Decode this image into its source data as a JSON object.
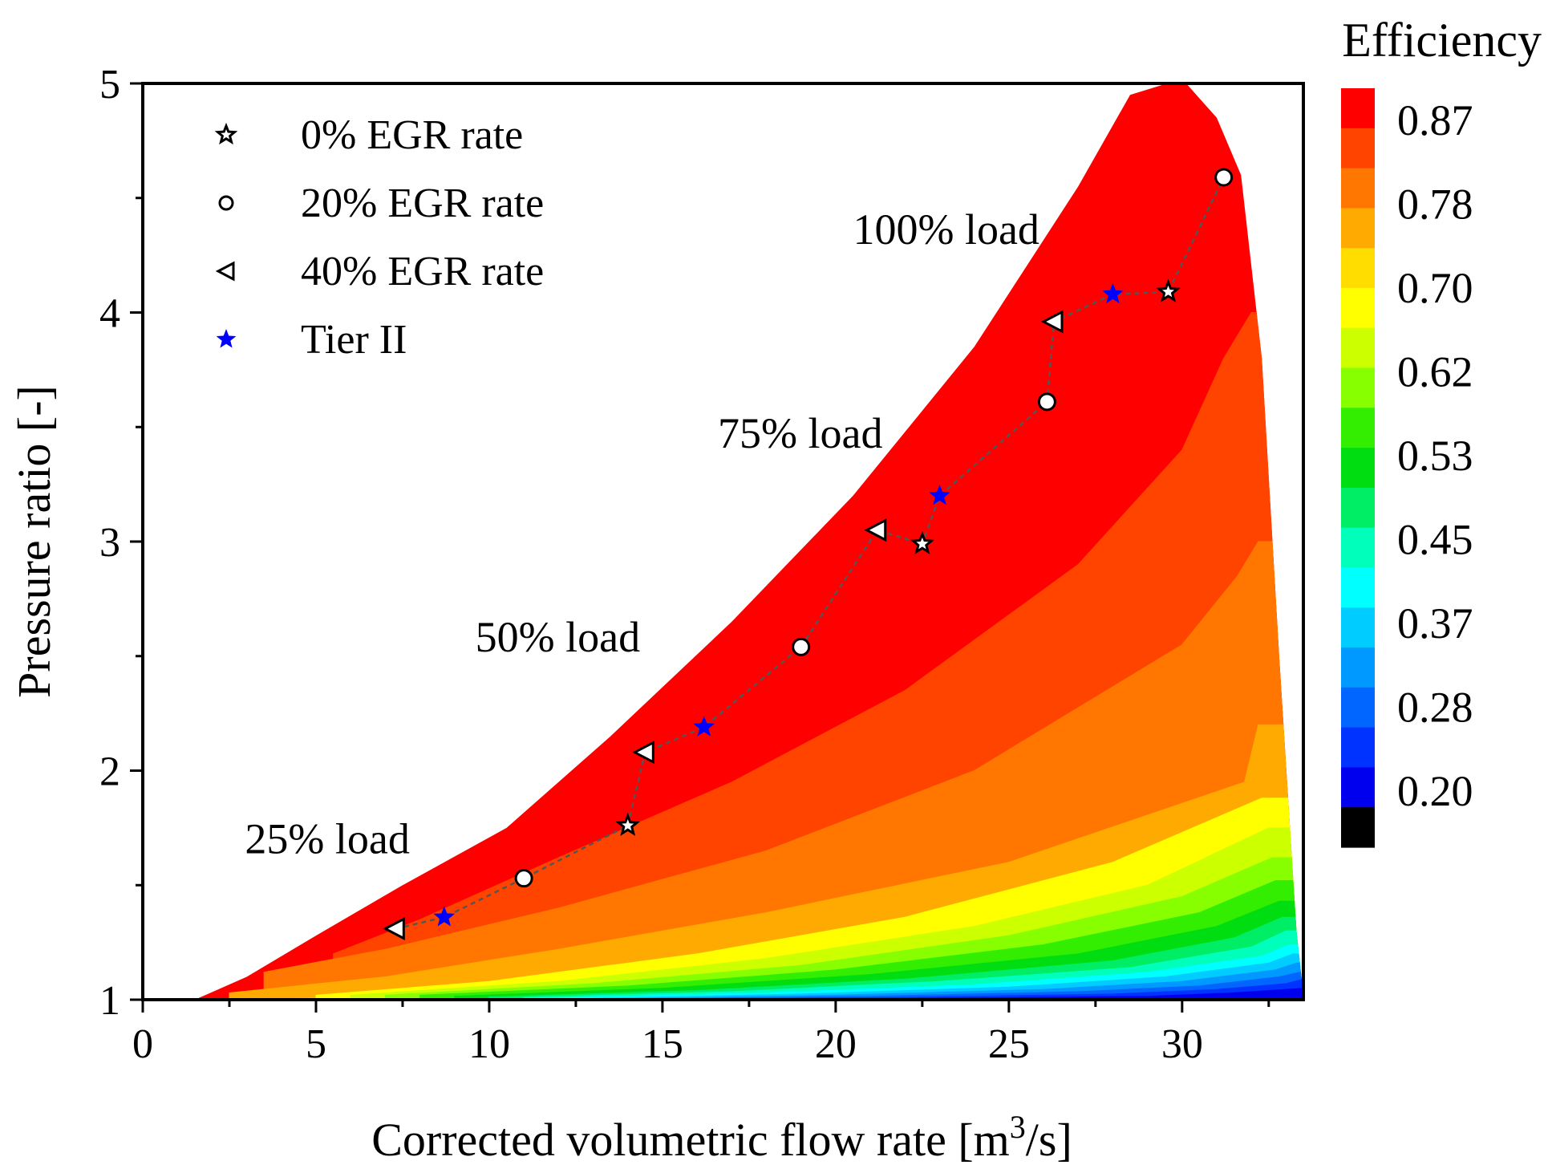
{
  "chart_data": {
    "type": "contour",
    "title": "",
    "xlabel_main": "Corrected volumetric flow rate [m",
    "xlabel_sup": "3",
    "xlabel_tail": "/s]",
    "ylabel": "Pressure ratio [-]",
    "xlim": [
      0,
      33.5
    ],
    "ylim": [
      1,
      5
    ],
    "xticks": [
      "0",
      "5",
      "10",
      "15",
      "20",
      "25",
      "30"
    ],
    "xtick_values": [
      0,
      5,
      10,
      15,
      20,
      25,
      30
    ],
    "yticks": [
      "1",
      "2",
      "3",
      "4",
      "5"
    ],
    "ytick_values": [
      1,
      2,
      3,
      4,
      5
    ],
    "colorbar": {
      "title": "Efficiency",
      "labels": [
        "0.87",
        "0.78",
        "0.70",
        "0.62",
        "0.53",
        "0.45",
        "0.37",
        "0.28",
        "0.20"
      ],
      "colors": [
        "#ff0000",
        "#ff4400",
        "#ff7700",
        "#ffaa00",
        "#ffdd00",
        "#ffff00",
        "#ccff00",
        "#88ff00",
        "#33ee00",
        "#00dd11",
        "#00ee66",
        "#00ffbb",
        "#00ffff",
        "#00ccff",
        "#0099ff",
        "#0066ff",
        "#0033ff",
        "#0000ee",
        "#000000"
      ]
    },
    "contour_levels": [
      {
        "color": "#ffaa00",
        "lower": [
          [
            1.5,
            1.0
          ],
          [
            7,
            1.01
          ],
          [
            15,
            1.02
          ],
          [
            25,
            1.04
          ],
          [
            33.3,
            1.06
          ]
        ]
      },
      {
        "color": "#ff7700",
        "lower": [
          [
            2.5,
            1.03
          ],
          [
            7,
            1.1
          ],
          [
            12,
            1.22
          ],
          [
            18,
            1.38
          ],
          [
            25,
            1.6
          ],
          [
            31.8,
            1.95
          ],
          [
            32.2,
            2.2
          ]
        ]
      },
      {
        "color": "#ff4400",
        "lower": [
          [
            3.5,
            1.12
          ],
          [
            7,
            1.22
          ],
          [
            12,
            1.4
          ],
          [
            18,
            1.65
          ],
          [
            24,
            2.0
          ],
          [
            30,
            2.55
          ],
          [
            31.6,
            2.85
          ],
          [
            32.2,
            3.0
          ]
        ]
      },
      {
        "color": "#ff0000",
        "lower": [
          [
            5.5,
            1.2
          ],
          [
            8,
            1.35
          ],
          [
            12,
            1.62
          ],
          [
            17,
            1.95
          ],
          [
            22,
            2.35
          ],
          [
            27,
            2.9
          ],
          [
            30,
            3.4
          ],
          [
            31.2,
            3.8
          ],
          [
            32.0,
            4.0
          ]
        ]
      },
      {
        "color": "#ffdd00",
        "lower": [
          [
            5,
            1.02
          ],
          [
            10,
            1.08
          ],
          [
            16,
            1.2
          ],
          [
            22,
            1.36
          ],
          [
            28,
            1.6
          ],
          [
            32.3,
            1.88
          ]
        ]
      },
      {
        "color": "#ffff00",
        "lower": [
          [
            6,
            1.02
          ],
          [
            12,
            1.08
          ],
          [
            18,
            1.18
          ],
          [
            24,
            1.32
          ],
          [
            29,
            1.5
          ],
          [
            32.5,
            1.75
          ]
        ]
      },
      {
        "color": "#ccff00",
        "lower": [
          [
            7,
            1.02
          ],
          [
            13,
            1.07
          ],
          [
            19,
            1.15
          ],
          [
            25,
            1.28
          ],
          [
            30,
            1.45
          ],
          [
            32.6,
            1.62
          ]
        ]
      },
      {
        "color": "#88ff00",
        "lower": [
          [
            8,
            1.02
          ],
          [
            14,
            1.06
          ],
          [
            20,
            1.13
          ],
          [
            26,
            1.24
          ],
          [
            30.5,
            1.38
          ],
          [
            32.7,
            1.52
          ]
        ]
      },
      {
        "color": "#33ee00",
        "lower": [
          [
            9,
            1.015
          ],
          [
            15,
            1.05
          ],
          [
            21,
            1.11
          ],
          [
            27,
            1.2
          ],
          [
            31,
            1.32
          ],
          [
            32.8,
            1.43
          ]
        ]
      },
      {
        "color": "#00dd11",
        "lower": [
          [
            10,
            1.012
          ],
          [
            16,
            1.04
          ],
          [
            22,
            1.09
          ],
          [
            28,
            1.17
          ],
          [
            31.5,
            1.27
          ],
          [
            32.9,
            1.36
          ]
        ]
      },
      {
        "color": "#00ee66",
        "lower": [
          [
            11,
            1.01
          ],
          [
            17,
            1.035
          ],
          [
            23,
            1.08
          ],
          [
            28.5,
            1.14
          ],
          [
            32,
            1.23
          ],
          [
            33.0,
            1.3
          ]
        ]
      },
      {
        "color": "#00ffbb",
        "lower": [
          [
            12,
            1.008
          ],
          [
            18,
            1.03
          ],
          [
            24,
            1.065
          ],
          [
            29,
            1.12
          ],
          [
            32.3,
            1.19
          ],
          [
            33.1,
            1.24
          ]
        ]
      },
      {
        "color": "#00ffff",
        "lower": [
          [
            13,
            1.006
          ],
          [
            19,
            1.025
          ],
          [
            25,
            1.055
          ],
          [
            29.5,
            1.1
          ],
          [
            32.5,
            1.16
          ],
          [
            33.2,
            1.2
          ]
        ]
      },
      {
        "color": "#00ccff",
        "lower": [
          [
            14,
            1.005
          ],
          [
            20,
            1.02
          ],
          [
            26,
            1.045
          ],
          [
            30,
            1.08
          ],
          [
            32.7,
            1.13
          ],
          [
            33.3,
            1.16
          ]
        ]
      },
      {
        "color": "#0099ff",
        "lower": [
          [
            15,
            1.004
          ],
          [
            21,
            1.015
          ],
          [
            27,
            1.035
          ],
          [
            30.5,
            1.06
          ],
          [
            32.8,
            1.1
          ],
          [
            33.4,
            1.12
          ]
        ]
      },
      {
        "color": "#0066ff",
        "lower": [
          [
            16,
            1.003
          ],
          [
            22,
            1.01
          ],
          [
            28,
            1.025
          ],
          [
            31,
            1.045
          ],
          [
            33,
            1.07
          ],
          [
            33.5,
            1.09
          ]
        ]
      },
      {
        "color": "#0033ff",
        "lower": [
          [
            17,
            1.002
          ],
          [
            23,
            1.006
          ],
          [
            29,
            1.015
          ],
          [
            31.5,
            1.03
          ],
          [
            33.5,
            1.05
          ]
        ]
      }
    ],
    "envelope": [
      [
        0,
        1.0
      ],
      [
        1.5,
        1.0
      ],
      [
        3,
        1.1
      ],
      [
        5,
        1.28
      ],
      [
        7.5,
        1.5
      ],
      [
        10.5,
        1.75
      ],
      [
        13.5,
        2.15
      ],
      [
        17,
        2.65
      ],
      [
        20.5,
        3.2
      ],
      [
        24,
        3.85
      ],
      [
        27,
        4.55
      ],
      [
        28.5,
        4.95
      ],
      [
        30,
        5.02
      ],
      [
        31,
        4.85
      ],
      [
        31.7,
        4.6
      ],
      [
        32.3,
        3.8
      ],
      [
        32.8,
        2.5
      ],
      [
        33.3,
        1.3
      ],
      [
        33.5,
        1.02
      ]
    ],
    "series": [
      {
        "name": "0% EGR rate",
        "marker": "star-open",
        "x": [
          14.0,
          22.5,
          29.6
        ],
        "y": [
          1.76,
          2.99,
          4.09
        ]
      },
      {
        "name": "20% EGR rate",
        "marker": "circle-open",
        "x": [
          11.0,
          19.0,
          26.1,
          31.2
        ],
        "y": [
          1.53,
          2.54,
          3.61,
          4.59
        ]
      },
      {
        "name": "40% EGR rate",
        "marker": "triangle-left-open",
        "x": [
          7.3,
          14.5,
          21.2,
          26.3
        ],
        "y": [
          1.31,
          2.08,
          3.05,
          3.96
        ]
      },
      {
        "name": "Tier II",
        "marker": "star-blue",
        "x": [
          8.7,
          16.2,
          23.0,
          28.0
        ],
        "y": [
          1.36,
          2.19,
          3.2,
          4.08
        ]
      }
    ],
    "dashed_path": {
      "x": [
        7.3,
        8.7,
        11.0,
        14.0,
        14.5,
        16.2,
        19.0,
        21.2,
        22.5,
        23.0,
        26.1,
        26.3,
        28.0,
        29.6,
        31.2
      ],
      "y": [
        1.31,
        1.36,
        1.53,
        1.76,
        2.08,
        2.19,
        2.54,
        3.05,
        2.99,
        3.2,
        3.61,
        3.96,
        4.08,
        4.09,
        4.59
      ]
    },
    "annotations": [
      {
        "text": "100% load",
        "x": 20.5,
        "y": 4.3
      },
      {
        "text": "75% load",
        "x": 16.6,
        "y": 3.41
      },
      {
        "text": "50% load",
        "x": 9.6,
        "y": 2.52
      },
      {
        "text": "25% load",
        "x": 2.95,
        "y": 1.64
      }
    ],
    "legend": {
      "placement": "top-left",
      "entries": [
        {
          "label": "0% EGR rate",
          "marker": "star-open"
        },
        {
          "label": "20% EGR rate",
          "marker": "circle-open"
        },
        {
          "label": "40% EGR rate",
          "marker": "triangle-left-open"
        },
        {
          "label": "Tier II",
          "marker": "star-blue"
        }
      ]
    }
  }
}
